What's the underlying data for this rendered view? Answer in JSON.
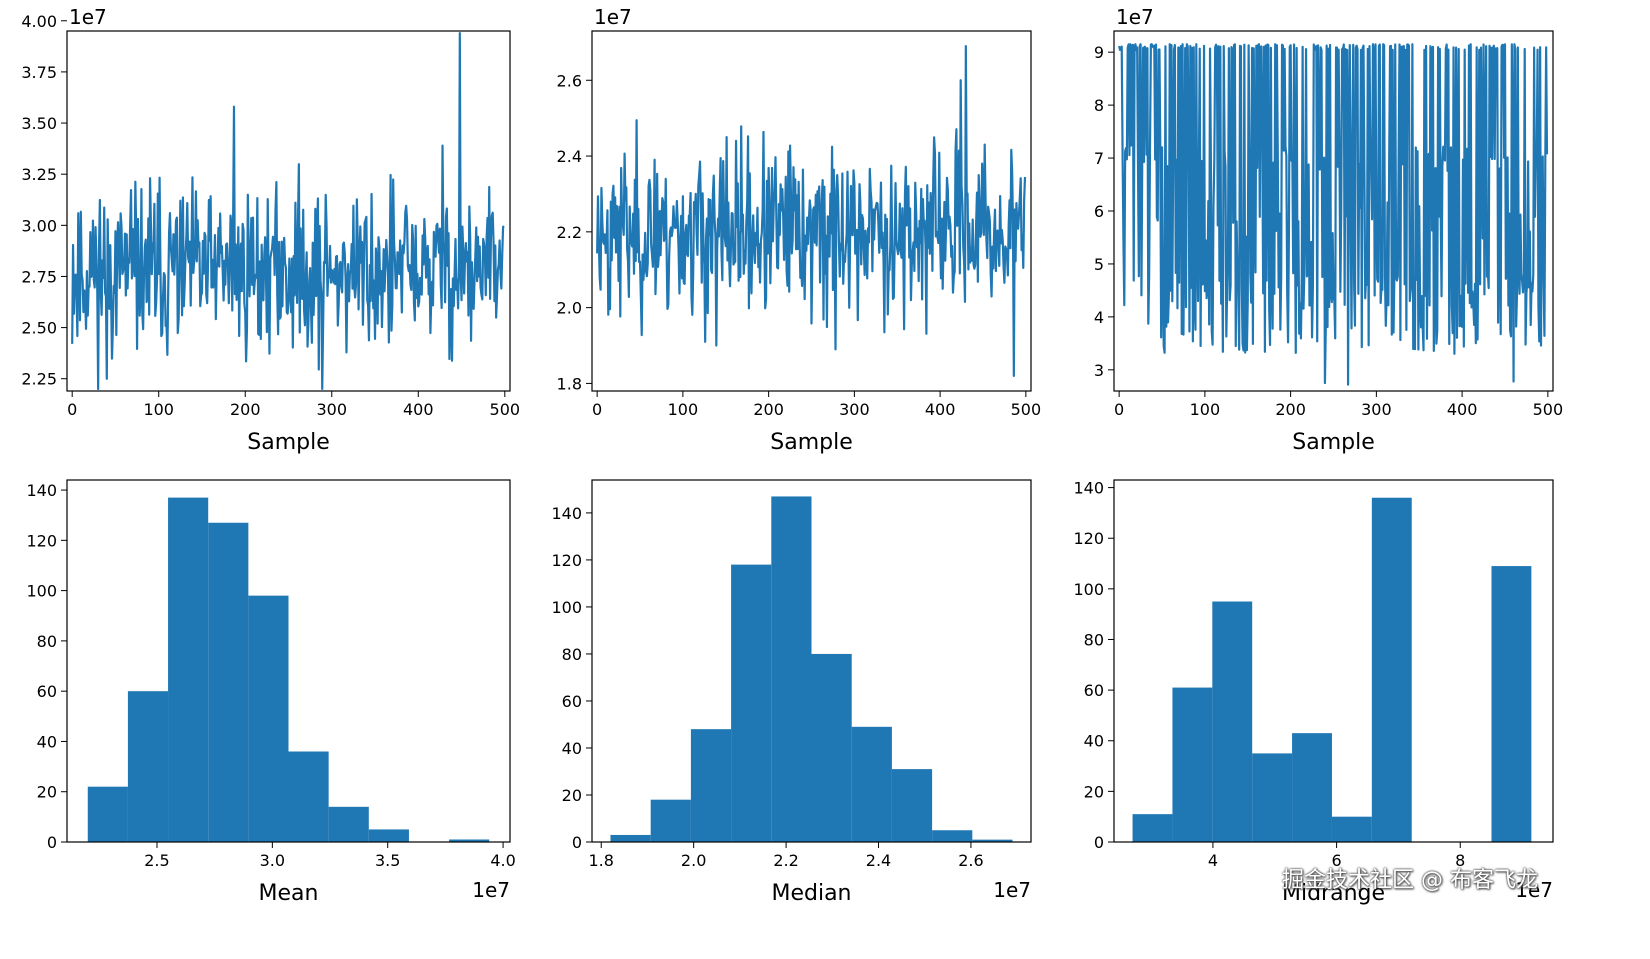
{
  "chart_data": [
    {
      "type": "line",
      "panel": "mean-trace",
      "xlabel": "Sample",
      "ylabel": "",
      "offset_text": "1e7",
      "xlim": [
        -6,
        506
      ],
      "ylim": [
        2.19,
        3.95
      ],
      "xticks": [
        0,
        100,
        200,
        300,
        400,
        500
      ],
      "xtick_labels": [
        "0",
        "100",
        "200",
        "300",
        "400",
        "500"
      ],
      "yticks": [
        2.25,
        2.5,
        2.75,
        3.0,
        3.25,
        3.5,
        3.75,
        4.0
      ],
      "ytick_labels": [
        "2.25",
        "2.50",
        "2.75",
        "3.00",
        "3.25",
        "3.50",
        "3.75",
        "4.00"
      ],
      "series": [
        {
          "name": "mean",
          "n": 500,
          "center": 2.78,
          "spread": 0.2,
          "min": 2.2,
          "max": 3.94,
          "seed": 11,
          "spikes": [
            [
              187,
              3.58
            ],
            [
              448,
              3.94
            ],
            [
              428,
              3.39
            ],
            [
              40,
              2.25
            ],
            [
              289,
              2.2
            ]
          ]
        }
      ]
    },
    {
      "type": "line",
      "panel": "median-trace",
      "xlabel": "Sample",
      "ylabel": "",
      "offset_text": "1e7",
      "xlim": [
        -6,
        506
      ],
      "ylim": [
        1.78,
        2.73
      ],
      "xticks": [
        0,
        100,
        200,
        300,
        400,
        500
      ],
      "xtick_labels": [
        "0",
        "100",
        "200",
        "300",
        "400",
        "500"
      ],
      "yticks": [
        1.8,
        2.0,
        2.2,
        2.4,
        2.6
      ],
      "ytick_labels": [
        "1.8",
        "2.0",
        "2.2",
        "2.4",
        "2.6"
      ],
      "series": [
        {
          "name": "median",
          "n": 500,
          "center": 2.2,
          "spread": 0.11,
          "min": 1.82,
          "max": 2.69,
          "seed": 23,
          "spikes": [
            [
              430,
              2.69
            ],
            [
              424,
              2.6
            ],
            [
              486,
              1.82
            ],
            [
              139,
              1.9
            ],
            [
              278,
              1.89
            ]
          ]
        }
      ]
    },
    {
      "type": "line",
      "panel": "midrange-trace",
      "xlabel": "Sample",
      "ylabel": "",
      "offset_text": "1e7",
      "xlim": [
        -6,
        506
      ],
      "ylim": [
        2.6,
        9.4
      ],
      "xticks": [
        0,
        100,
        200,
        300,
        400,
        500
      ],
      "xtick_labels": [
        "0",
        "100",
        "200",
        "300",
        "400",
        "500"
      ],
      "yticks": [
        3,
        4,
        5,
        6,
        7,
        8,
        9
      ],
      "ytick_labels": [
        "3",
        "4",
        "5",
        "6",
        "7",
        "8",
        "9"
      ],
      "series": [
        {
          "name": "midrange",
          "n": 500,
          "levels": [
            9.1,
            7.0,
            5.8,
            4.5,
            3.6
          ],
          "min": 2.7,
          "max": 9.15,
          "seed": 37,
          "spikes": [
            [
              240,
              2.75
            ],
            [
              267,
              2.72
            ],
            [
              460,
              2.78
            ]
          ]
        }
      ]
    },
    {
      "type": "bar",
      "panel": "mean-hist",
      "xlabel": "Mean",
      "ylabel": "",
      "offset_text": "1e7",
      "xlim": [
        2.11,
        4.03
      ],
      "ylim": [
        0,
        144
      ],
      "bin_edges": [
        2.2,
        2.374,
        2.548,
        2.722,
        2.896,
        3.07,
        3.244,
        3.418,
        3.592,
        3.766,
        3.94
      ],
      "counts": [
        22,
        60,
        137,
        127,
        98,
        36,
        14,
        5,
        0,
        1
      ],
      "xticks": [
        2.5,
        3.0,
        3.5,
        4.0
      ],
      "xtick_labels": [
        "2.5",
        "3.0",
        "3.5",
        "4.0"
      ],
      "yticks": [
        0,
        20,
        40,
        60,
        80,
        100,
        120,
        140
      ],
      "ytick_labels": [
        "0",
        "20",
        "40",
        "60",
        "80",
        "100",
        "120",
        "140"
      ]
    },
    {
      "type": "bar",
      "panel": "median-hist",
      "xlabel": "Median",
      "ylabel": "",
      "offset_text": "1e7",
      "xlim": [
        1.78,
        2.73
      ],
      "ylim": [
        0,
        154
      ],
      "bin_edges": [
        1.82,
        1.907,
        1.994,
        2.081,
        2.168,
        2.255,
        2.342,
        2.429,
        2.516,
        2.603,
        2.69
      ],
      "counts": [
        3,
        18,
        48,
        118,
        147,
        80,
        49,
        31,
        5,
        1
      ],
      "xticks": [
        1.8,
        2.0,
        2.2,
        2.4,
        2.6
      ],
      "xtick_labels": [
        "1.8",
        "2.0",
        "2.2",
        "2.4",
        "2.6"
      ],
      "yticks": [
        0,
        20,
        40,
        60,
        80,
        100,
        120,
        140
      ],
      "ytick_labels": [
        "0",
        "20",
        "40",
        "60",
        "80",
        "100",
        "120",
        "140"
      ]
    },
    {
      "type": "bar",
      "panel": "midrange-hist",
      "xlabel": "Midrange",
      "ylabel": "",
      "offset_text": "1e7",
      "xlim": [
        2.4,
        9.5
      ],
      "ylim": [
        0,
        143
      ],
      "bin_edges": [
        2.7,
        3.345,
        3.99,
        4.635,
        5.28,
        5.925,
        6.57,
        7.215,
        7.86,
        8.505,
        9.15
      ],
      "counts": [
        11,
        61,
        95,
        35,
        43,
        10,
        136,
        0,
        0,
        109
      ],
      "xticks": [
        4,
        6,
        8
      ],
      "xtick_labels": [
        "4",
        "6",
        "8"
      ],
      "yticks": [
        0,
        20,
        40,
        60,
        80,
        100,
        120,
        140
      ],
      "ytick_labels": [
        "0",
        "20",
        "40",
        "60",
        "80",
        "100",
        "120",
        "140"
      ]
    }
  ],
  "watermark": "掘金技术社区 @ 布客飞龙"
}
